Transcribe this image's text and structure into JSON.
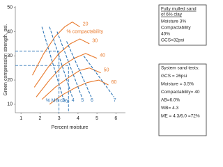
{
  "chart_data": {
    "type": "line",
    "x_label": "Percent moisture",
    "y_label": "Green compression strength, psi.",
    "xlim": [
      0.7,
      6.5
    ],
    "ylim": [
      6.5,
      50.5
    ],
    "xticks": [
      1,
      2,
      3,
      4,
      5,
      6
    ],
    "yticks": [
      10,
      20,
      30,
      40,
      50
    ],
    "grid": false,
    "annotations": [
      {
        "text": "% compactability",
        "x": 3.4,
        "y": 40,
        "color": "#e8792b"
      },
      {
        "text": "% MB clay.",
        "x": 2.3,
        "y": 11.5,
        "color": "#2e75b6"
      }
    ],
    "series": [
      {
        "name": "20",
        "color": "#e8792b",
        "style": "solid",
        "x": [
          1.6,
          2.2,
          2.8,
          3.3,
          3.7,
          4.1
        ],
        "values": [
          22,
          31,
          38,
          42,
          44,
          42
        ]
      },
      {
        "name": "30",
        "color": "#e8792b",
        "style": "solid",
        "x": [
          1.7,
          2.4,
          3.0,
          3.6,
          4.1,
          4.6
        ],
        "values": [
          17,
          25,
          31,
          35,
          37,
          35
        ]
      },
      {
        "name": "40",
        "color": "#e8792b",
        "style": "solid",
        "x": [
          1.8,
          2.5,
          3.2,
          3.8,
          4.4,
          5.0
        ],
        "values": [
          13,
          20,
          26,
          29,
          31,
          29
        ]
      },
      {
        "name": "50",
        "color": "#e8792b",
        "style": "solid",
        "x": [
          2.1,
          2.8,
          3.5,
          4.1,
          4.6,
          5.2
        ],
        "values": [
          12,
          17,
          21,
          24,
          25,
          23
        ]
      },
      {
        "name": "60",
        "color": "#e8792b",
        "style": "solid",
        "x": [
          2.5,
          3.2,
          3.9,
          4.5,
          5.1,
          5.6
        ],
        "values": [
          10,
          14,
          17,
          19,
          20,
          18
        ]
      },
      {
        "name": "3",
        "color": "#2e75b6",
        "style": "dashed",
        "x": [
          2.1,
          3.2
        ],
        "values": [
          42,
          13
        ]
      },
      {
        "name": "4",
        "color": "#2e75b6",
        "style": "dashed",
        "x": [
          2.5,
          3.7
        ],
        "values": [
          42,
          13
        ]
      },
      {
        "name": "5",
        "color": "#2e75b6",
        "style": "dashed",
        "x": [
          2.9,
          4.2
        ],
        "values": [
          40,
          13
        ]
      },
      {
        "name": "6",
        "color": "#2e75b6",
        "style": "dashed",
        "x": [
          3.4,
          4.7
        ],
        "values": [
          36,
          13
        ]
      },
      {
        "name": "7",
        "color": "#2e75b6",
        "style": "dashed",
        "x": [
          4.3,
          5.9
        ],
        "values": [
          30,
          13
        ]
      }
    ],
    "readings": [
      {
        "x": 3,
        "y": 32
      },
      {
        "x": 3.5,
        "y": 26
      }
    ],
    "boxes": [
      {
        "heading": [
          "Fully mulled sand",
          "of 6% clay"
        ],
        "lines": [
          "Moisture 3%",
          "Compactability",
          "40%",
          "GCS=32psi"
        ]
      },
      {
        "lines": [
          "System sand tests:",
          "GCS = 26psi",
          "Moisture = 3.5%",
          "Compactability= 40",
          "AB=6.0%",
          "WB= 4.3",
          "ME = 4.3/6.0 =72%"
        ]
      }
    ]
  }
}
